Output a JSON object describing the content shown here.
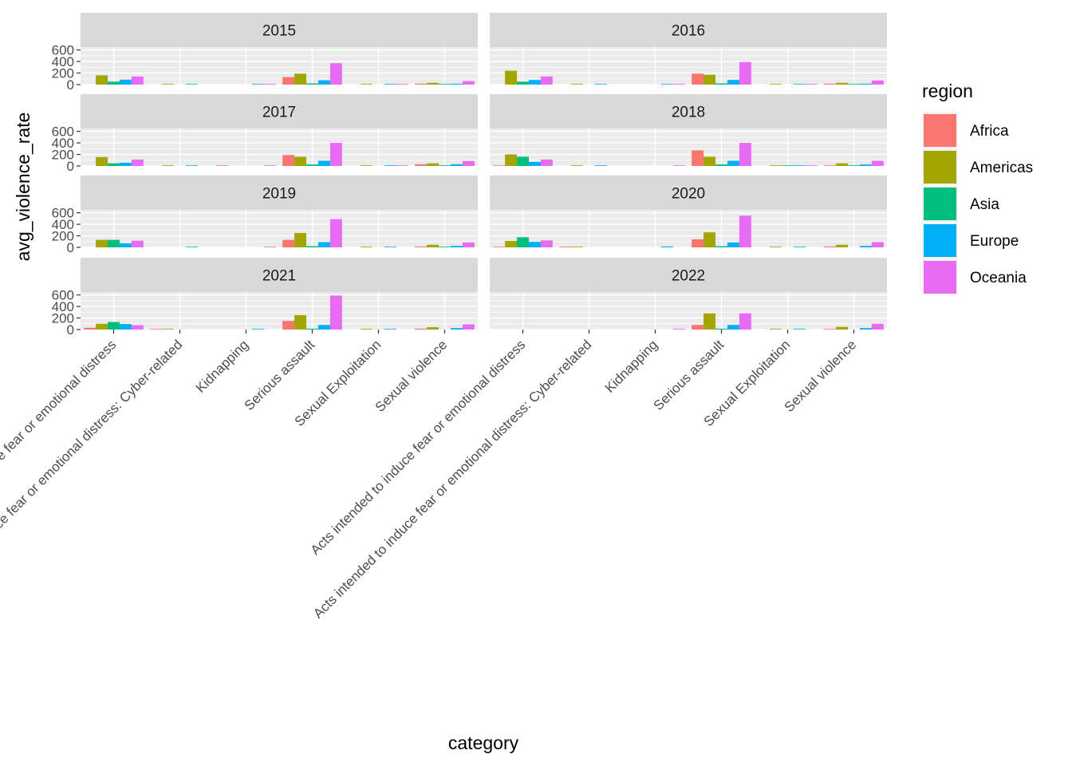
{
  "chart_data": {
    "type": "bar",
    "facet_variable": "year",
    "panels": [
      "2015",
      "2016",
      "2017",
      "2018",
      "2019",
      "2020",
      "2021",
      "2022"
    ],
    "categories": [
      "Acts intended to induce fear or emotional distress",
      "Acts intended to induce fear or emotional distress: Cyber-related",
      "Kidnapping",
      "Serious assault",
      "Sexual Exploitation",
      "Sexual violence"
    ],
    "xlabel": "category",
    "ylabel": "avg_violence_rate",
    "y_ticks": [
      "0",
      "200",
      "400",
      "600"
    ],
    "ylim": [
      0,
      650
    ],
    "grid": true,
    "legend": {
      "title": "region",
      "position": "right",
      "entries": [
        {
          "name": "Africa",
          "color": "#F8766D"
        },
        {
          "name": "Americas",
          "color": "#A3A500"
        },
        {
          "name": "Asia",
          "color": "#00BF7D"
        },
        {
          "name": "Europe",
          "color": "#00B0F6"
        },
        {
          "name": "Oceania",
          "color": "#E76BF3"
        }
      ]
    },
    "data": {
      "2015": [
        {
          "category": 0,
          "values": {
            "Americas": 160,
            "Asia": 50,
            "Europe": 85,
            "Oceania": 140
          }
        },
        {
          "category": 1,
          "values": {
            "Americas": 8,
            "Europe": 10
          }
        },
        {
          "category": 2,
          "values": {
            "Europe": 4,
            "Oceania": 4
          }
        },
        {
          "category": 3,
          "values": {
            "Africa": 130,
            "Americas": 190,
            "Asia": 20,
            "Europe": 75,
            "Oceania": 370
          }
        },
        {
          "category": 4,
          "values": {
            "Americas": 4,
            "Europe": 4,
            "Oceania": 4
          }
        },
        {
          "category": 5,
          "values": {
            "Africa": 15,
            "Americas": 30,
            "Asia": 8,
            "Europe": 15,
            "Oceania": 60
          }
        }
      ],
      "2016": [
        {
          "category": 0,
          "values": {
            "Americas": 240,
            "Asia": 50,
            "Europe": 80,
            "Oceania": 140
          }
        },
        {
          "category": 1,
          "values": {
            "Americas": 8,
            "Europe": 10
          }
        },
        {
          "category": 2,
          "values": {
            "Europe": 4,
            "Oceania": 4
          }
        },
        {
          "category": 3,
          "values": {
            "Africa": 190,
            "Americas": 170,
            "Asia": 20,
            "Europe": 80,
            "Oceania": 390
          }
        },
        {
          "category": 4,
          "values": {
            "Americas": 4,
            "Europe": 4,
            "Oceania": 4
          }
        },
        {
          "category": 5,
          "values": {
            "Africa": 15,
            "Americas": 30,
            "Asia": 8,
            "Europe": 15,
            "Oceania": 70
          }
        }
      ],
      "2017": [
        {
          "category": 0,
          "values": {
            "Americas": 155,
            "Asia": 45,
            "Europe": 55,
            "Oceania": 110
          }
        },
        {
          "category": 1,
          "values": {
            "Americas": 8,
            "Europe": 10
          }
        },
        {
          "category": 2,
          "values": {
            "Africa": 8,
            "Oceania": 8
          }
        },
        {
          "category": 3,
          "values": {
            "Africa": 190,
            "Americas": 160,
            "Asia": 25,
            "Europe": 90,
            "Oceania": 400
          }
        },
        {
          "category": 4,
          "values": {
            "Americas": 5,
            "Europe": 8,
            "Oceania": 8
          }
        },
        {
          "category": 5,
          "values": {
            "Africa": 30,
            "Americas": 45,
            "Asia": 10,
            "Europe": 30,
            "Oceania": 85
          }
        }
      ],
      "2018": [
        {
          "category": 0,
          "values": {
            "Africa": 10,
            "Americas": 200,
            "Asia": 160,
            "Europe": 70,
            "Oceania": 110
          }
        },
        {
          "category": 1,
          "values": {
            "Americas": 8,
            "Europe": 10
          }
        },
        {
          "category": 2,
          "values": {
            "Oceania": 5
          }
        },
        {
          "category": 3,
          "values": {
            "Africa": 270,
            "Americas": 160,
            "Asia": 25,
            "Europe": 90,
            "Oceania": 400
          }
        },
        {
          "category": 4,
          "values": {
            "Americas": 5,
            "Asia": 5,
            "Europe": 5,
            "Oceania": 5
          }
        },
        {
          "category": 5,
          "values": {
            "Africa": 10,
            "Americas": 45,
            "Asia": 10,
            "Europe": 25,
            "Oceania": 90
          }
        }
      ],
      "2019": [
        {
          "category": 0,
          "values": {
            "Americas": 130,
            "Asia": 130,
            "Europe": 70,
            "Oceania": 115
          }
        },
        {
          "category": 1,
          "values": {
            "Europe": 10
          }
        },
        {
          "category": 2,
          "values": {
            "Oceania": 4
          }
        },
        {
          "category": 3,
          "values": {
            "Africa": 130,
            "Americas": 250,
            "Asia": 20,
            "Europe": 90,
            "Oceania": 490
          }
        },
        {
          "category": 4,
          "values": {
            "Americas": 10,
            "Europe": 8
          }
        },
        {
          "category": 5,
          "values": {
            "Africa": 15,
            "Americas": 45,
            "Asia": 8,
            "Europe": 25,
            "Oceania": 85
          }
        }
      ],
      "2020": [
        {
          "category": 0,
          "values": {
            "Africa": 10,
            "Americas": 110,
            "Asia": 175,
            "Europe": 95,
            "Oceania": 120
          }
        },
        {
          "category": 1,
          "values": {
            "Africa": 8,
            "Americas": 8
          }
        },
        {
          "category": 2,
          "values": {
            "Europe": 15
          }
        },
        {
          "category": 3,
          "values": {
            "Africa": 140,
            "Americas": 260,
            "Asia": 20,
            "Europe": 85,
            "Oceania": 550
          }
        },
        {
          "category": 4,
          "values": {
            "Americas": 8,
            "Europe": 8
          }
        },
        {
          "category": 5,
          "values": {
            "Africa": 15,
            "Americas": 45,
            "Europe": 25,
            "Oceania": 90
          }
        }
      ],
      "2021": [
        {
          "category": 0,
          "values": {
            "Africa": 30,
            "Americas": 100,
            "Asia": 130,
            "Europe": 95,
            "Oceania": 75
          }
        },
        {
          "category": 1,
          "values": {
            "Africa": 8,
            "Americas": 8
          }
        },
        {
          "category": 2,
          "values": {
            "Europe": 8
          }
        },
        {
          "category": 3,
          "values": {
            "Africa": 150,
            "Americas": 250,
            "Asia": 15,
            "Europe": 80,
            "Oceania": 590
          }
        },
        {
          "category": 4,
          "values": {
            "Americas": 5,
            "Europe": 5
          }
        },
        {
          "category": 5,
          "values": {
            "Africa": 15,
            "Americas": 40,
            "Europe": 25,
            "Oceania": 90
          }
        }
      ],
      "2022": [
        {
          "category": 0,
          "values": {}
        },
        {
          "category": 1,
          "values": {}
        },
        {
          "category": 2,
          "values": {
            "Oceania": 4
          }
        },
        {
          "category": 3,
          "values": {
            "Africa": 80,
            "Americas": 280,
            "Asia": 15,
            "Europe": 80,
            "Oceania": 280
          }
        },
        {
          "category": 4,
          "values": {
            "Americas": 4,
            "Europe": 4
          }
        },
        {
          "category": 5,
          "values": {
            "Africa": 10,
            "Americas": 45,
            "Europe": 25,
            "Oceania": 100
          }
        }
      ]
    }
  }
}
